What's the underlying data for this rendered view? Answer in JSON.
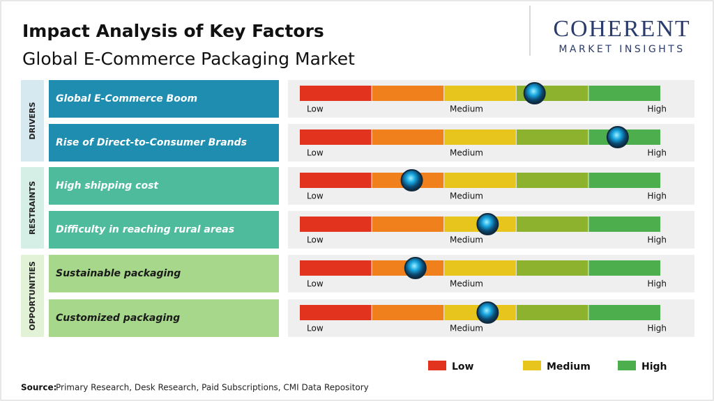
{
  "header": {
    "title": "Impact Analysis of Key Factors",
    "subtitle": "Global E-Commerce Packaging Market"
  },
  "logo": {
    "name": "COHERENT",
    "tagline": "MARKET INSIGHTS"
  },
  "groups": [
    {
      "label": "DRIVERS",
      "color": "#1e8db0",
      "side_color": "#d6e9f1",
      "text_color": "#ffffff",
      "factors": [
        {
          "label": "Global E-Commerce Boom",
          "impact": 0.65
        },
        {
          "label": "Rise of Direct-to-Consumer Brands",
          "impact": 0.88
        }
      ]
    },
    {
      "label": "RESTRAINTS",
      "color": "#4dbb9c",
      "side_color": "#d5eee6",
      "text_color": "#ffffff",
      "factors": [
        {
          "label": "High shipping cost",
          "impact": 0.31
        },
        {
          "label": "Difficulty in reaching rural areas",
          "impact": 0.52
        }
      ]
    },
    {
      "label": "OPPORTUNITIES",
      "color": "#a6d78a",
      "side_color": "#e2f2d6",
      "text_color": "#1a1a1a",
      "factors": [
        {
          "label": "Sustainable packaging",
          "impact": 0.32
        },
        {
          "label": "Customized packaging",
          "impact": 0.52
        }
      ]
    }
  ],
  "scale": {
    "labels": [
      "Low",
      "Medium",
      "High"
    ],
    "colors": [
      "#e2331f",
      "#f0801b",
      "#e8c51c",
      "#8db22d",
      "#4cae4c"
    ]
  },
  "legend": [
    {
      "label": "Low",
      "color": "#e2331f"
    },
    {
      "label": "Medium",
      "color": "#e8c51c"
    },
    {
      "label": "High",
      "color": "#4cae4c"
    }
  ],
  "source": {
    "label": "Source:",
    "text": "Primary Research, Desk Research, Paid Subscriptions, CMI Data Repository"
  }
}
